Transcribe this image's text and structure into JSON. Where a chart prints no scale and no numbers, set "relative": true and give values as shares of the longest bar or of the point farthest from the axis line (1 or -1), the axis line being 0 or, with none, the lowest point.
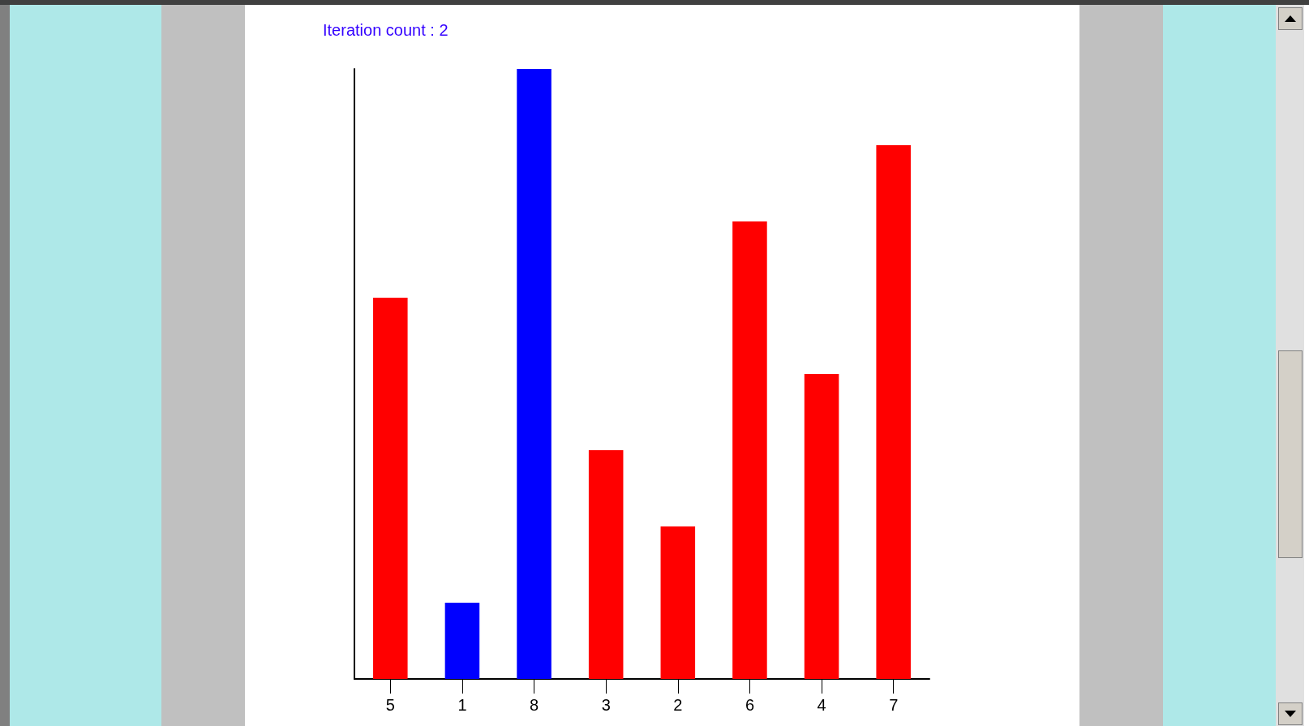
{
  "chart_data": {
    "type": "bar",
    "title": "Iteration count : 2",
    "relative": true,
    "categories": [
      "5",
      "1",
      "8",
      "3",
      "2",
      "6",
      "4",
      "7"
    ],
    "values": [
      0.625,
      0.125,
      1,
      0.375,
      0.25,
      0.75,
      0.5,
      0.875
    ],
    "colors": [
      "#ff0000",
      "#0000ff",
      "#0000ff",
      "#ff0000",
      "#ff0000",
      "#ff0000",
      "#ff0000",
      "#ff0000"
    ],
    "grid": false
  }
}
